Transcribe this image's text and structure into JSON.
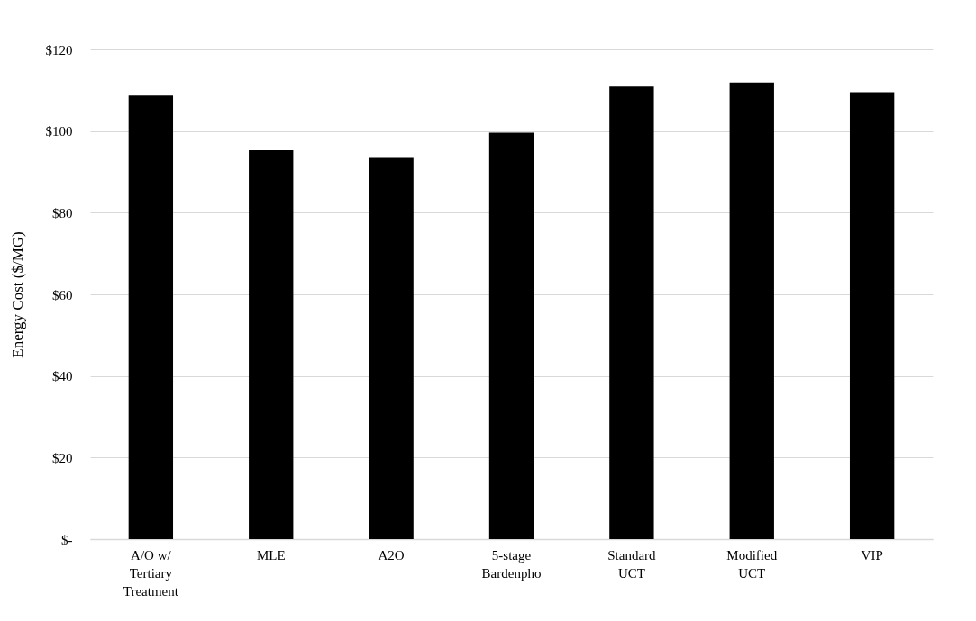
{
  "chart_data": {
    "type": "bar",
    "ylabel": "Energy Cost ($/MG)",
    "categories": [
      "A/O w/ Tertiary Treatment",
      "MLE",
      "A2O",
      "5-stage Bardenpho",
      "Standard UCT",
      "Modified UCT",
      "VIP"
    ],
    "values": [
      108.7,
      95.3,
      93.4,
      99.6,
      110.9,
      111.9,
      109.5
    ],
    "color": "#000000",
    "ylim": [
      0,
      120
    ],
    "yticks": [
      {
        "value": 0,
        "label": "$-"
      },
      {
        "value": 20,
        "label": "$20"
      },
      {
        "value": 40,
        "label": "$40"
      },
      {
        "value": 60,
        "label": "$60"
      },
      {
        "value": 80,
        "label": "$80"
      },
      {
        "value": 100,
        "label": "$100"
      },
      {
        "value": 120,
        "label": "$120"
      }
    ],
    "grid": "y"
  }
}
